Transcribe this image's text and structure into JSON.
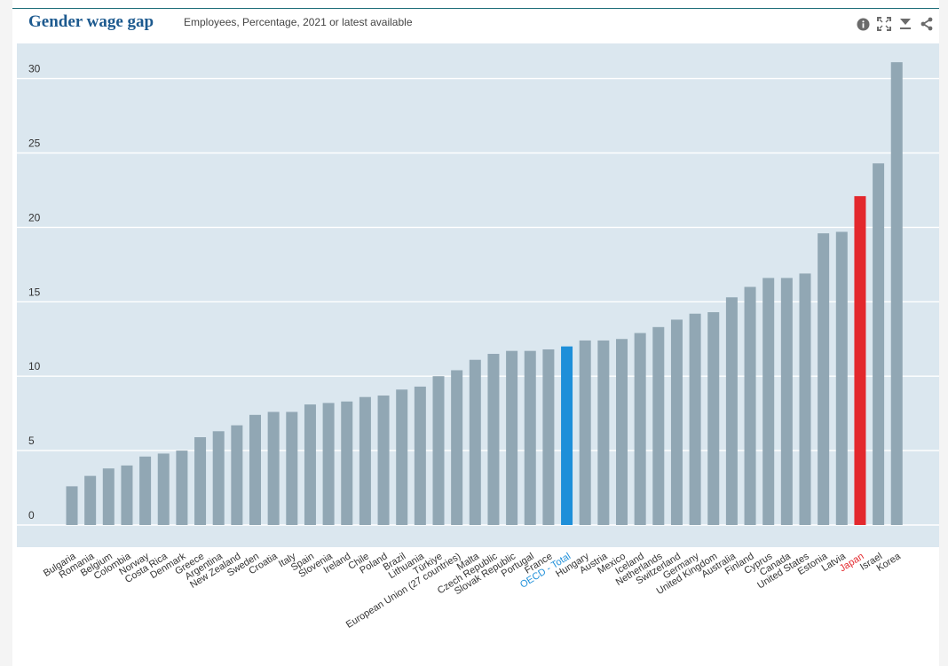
{
  "header": {
    "title": "Gender wage gap",
    "subtitle": "Employees, Percentage, 2021 or latest available"
  },
  "toolbar": {
    "info_icon": "info-icon",
    "fullscreen_icon": "fullscreen-icon",
    "download_icon": "download-icon",
    "share_icon": "share-icon"
  },
  "colors": {
    "plot_background": "#dbe7ef",
    "bar_default": "#91a7b4",
    "bar_oecd": "#1e8fd9",
    "bar_japan": "#e3282d",
    "label_default": "#333333",
    "label_oecd": "#1e8fd9",
    "label_japan": "#e3282d"
  },
  "chart_data": {
    "type": "bar",
    "title": "Gender wage gap",
    "subtitle": "Employees, Percentage, 2021 or latest available",
    "ylim": [
      -1,
      31.5
    ],
    "yticks": [
      0,
      5,
      10,
      15,
      20,
      25,
      30
    ],
    "grid": true,
    "categories": [
      "Bulgaria",
      "Romania",
      "Belgium",
      "Colombia",
      "Norway",
      "Costa Rica",
      "Denmark",
      "Greece",
      "Argentina",
      "New Zealand",
      "Sweden",
      "Croatia",
      "Italy",
      "Spain",
      "Slovenia",
      "Ireland",
      "Chile",
      "Poland",
      "Brazil",
      "Lithuania",
      "Türkiye",
      "European Union (27 countries)",
      "Malta",
      "Czech Republic",
      "Slovak Republic",
      "Portugal",
      "France",
      "OECD - Total",
      "Hungary",
      "Austria",
      "Mexico",
      "Iceland",
      "Netherlands",
      "Switzerland",
      "Germany",
      "United Kingdom",
      "Australia",
      "Finland",
      "Cyprus",
      "Canada",
      "United States",
      "Estonia",
      "Latvia",
      "Japan",
      "Israel",
      "Korea"
    ],
    "values": [
      2.6,
      3.3,
      3.8,
      4.0,
      4.6,
      4.8,
      5.0,
      5.9,
      6.3,
      6.7,
      7.4,
      7.6,
      7.6,
      8.1,
      8.2,
      8.3,
      8.6,
      8.7,
      9.1,
      9.3,
      10.0,
      10.4,
      11.1,
      11.5,
      11.7,
      11.7,
      11.8,
      12.0,
      12.4,
      12.4,
      12.5,
      12.9,
      13.3,
      13.8,
      14.2,
      14.3,
      15.3,
      16.0,
      16.6,
      16.6,
      16.9,
      19.6,
      19.7,
      22.1,
      24.3,
      31.1
    ],
    "highlight": {
      "OECD - Total": "oecd",
      "Japan": "japan"
    }
  }
}
